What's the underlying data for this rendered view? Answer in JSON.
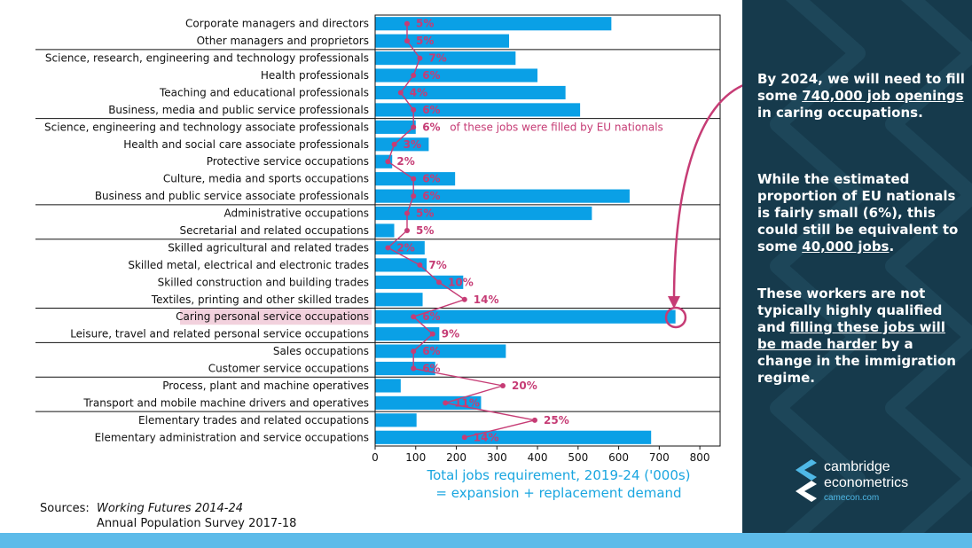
{
  "chart_data": {
    "type": "bar",
    "orientation": "horizontal",
    "categories": [
      "Corporate managers and directors",
      "Other managers and proprietors",
      "Science, research, engineering and technology professionals",
      "Health professionals",
      "Teaching and educational professionals",
      "Business, media and public service professionals",
      "Science, engineering and technology associate professionals",
      "Health and social care associate professionals",
      "Protective service occupations",
      "Culture, media and sports occupations",
      "Business and public service associate professionals",
      "Administrative occupations",
      "Secretarial and related occupations",
      "Skilled agricultural and related trades",
      "Skilled metal, electrical and electronic trades",
      "Skilled construction and building trades",
      "Textiles, printing and other skilled trades",
      "Caring personal service occupations",
      "Leisure, travel and related personal service occupations",
      "Sales occupations",
      "Customer service occupations",
      "Process, plant and machine operatives",
      "Transport and mobile machine drivers and operatives",
      "Elementary trades and related occupations",
      "Elementary administration and service occupations"
    ],
    "series": [
      {
        "name": "Total jobs requirement, 2019-24 ('000s)",
        "values": [
          582,
          330,
          346,
          400,
          469,
          505,
          100,
          132,
          42,
          197,
          627,
          534,
          47,
          122,
          127,
          217,
          117,
          740,
          158,
          322,
          148,
          63,
          261,
          102,
          680
        ]
      },
      {
        "name": "EU nationals share (%)",
        "values": [
          5,
          5,
          7,
          6,
          4,
          6,
          6,
          3,
          2,
          6,
          6,
          5,
          5,
          2,
          7,
          10,
          14,
          6,
          9,
          6,
          6,
          20,
          11,
          25,
          14
        ]
      }
    ],
    "pct_labels": [
      "5%",
      "5%",
      "7%",
      "6%",
      "4%",
      "6%",
      "6%",
      "3%",
      "2%",
      "6%",
      "6%",
      "5%",
      "5%",
      "2%",
      "7%",
      "10%",
      "14%",
      "6%",
      "9%",
      "6%",
      "6%",
      "20%",
      "11%",
      "25%",
      "14%"
    ],
    "xlim": [
      0,
      850
    ],
    "xticks": [
      0,
      100,
      200,
      300,
      400,
      500,
      600,
      700,
      800
    ],
    "xlabel_line1": "Total jobs requirement, 2019-24 ('000s)",
    "xlabel_line2": "= expansion + replacement demand",
    "annotation": "of these jobs were filled by EU nationals",
    "highlight_category": "Caring personal service occupations",
    "group_separators_after_index": [
      1,
      5,
      10,
      12,
      16,
      18,
      20,
      22
    ],
    "colors": {
      "bar": "#0aa0e6",
      "marker": "#c63c75",
      "highlight_bg": "#f2d1dd"
    }
  },
  "sources": {
    "label": "Sources:",
    "source1": "Working Futures 2014-24",
    "source2": "Annual Population Survey 2017-18"
  },
  "panel": {
    "p1_a": "By 2024, we will need to fill some ",
    "p1_b": "740,000 job openings",
    "p1_c": " in caring occupations.",
    "p2_a": "While the estimated proportion of EU nationals is fairly small (6%), this could still be equivalent to some ",
    "p2_b": "40,000 jobs",
    "p2_c": ".",
    "p3_a": "These workers are not typically highly qualified and ",
    "p3_b": "filling these jobs will be made harder",
    "p3_c": " by a change in the immigration regime."
  },
  "logo": {
    "line1": "cambridge",
    "line2": "econometrics",
    "line3": "camecon.com"
  },
  "colors": {
    "panel_bg": "#163a4c",
    "bottom_bar": "#5dbbe9",
    "accent_blue": "#1aa6e0"
  }
}
